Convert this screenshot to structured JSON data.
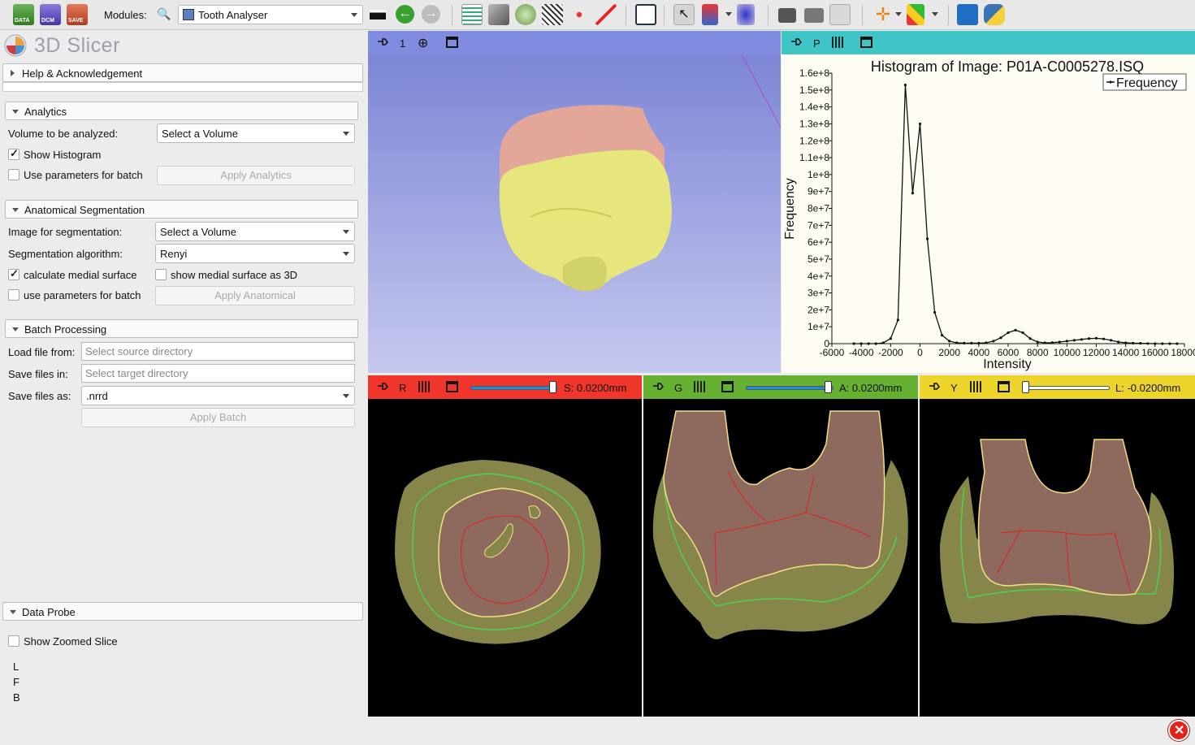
{
  "toolbar": {
    "data_label": "DATA",
    "dcm_label": "DCM",
    "save_label": "SAVE",
    "modules_label": "Modules:",
    "module_selected": "Tooth Analyser"
  },
  "app_title": "3D Slicer",
  "sections": {
    "help": "Help & Acknowledgement",
    "analytics": {
      "title": "Analytics",
      "volume_label": "Volume to be analyzed:",
      "volume_value": "Select a Volume",
      "show_histogram": "Show Histogram",
      "show_histogram_checked": true,
      "use_batch": "Use parameters for batch",
      "use_batch_checked": false,
      "apply": "Apply Analytics"
    },
    "anatomical": {
      "title": "Anatomical Segmentation",
      "image_label": "Image for segmentation:",
      "image_value": "Select a Volume",
      "algo_label": "Segmentation algorithm:",
      "algo_value": "Renyi",
      "medial": "calculate medial surface",
      "medial_checked": true,
      "medial3d": "show medial surface as 3D",
      "medial3d_checked": false,
      "use_batch": "use parameters for batch",
      "use_batch_checked": false,
      "apply": "Apply Anatomical"
    },
    "batch": {
      "title": "Batch Processing",
      "load_label": "Load file from:",
      "load_placeholder": "Select source directory",
      "save_label": "Save files in:",
      "save_placeholder": "Select target directory",
      "saveas_label": "Save files as:",
      "saveas_value": ".nrrd",
      "apply": "Apply Batch"
    },
    "probe": {
      "title": "Data Probe",
      "zoomed": "Show Zoomed Slice",
      "zoomed_checked": false,
      "l": "L",
      "f": "F",
      "b": "B"
    }
  },
  "views": {
    "threed": {
      "label": "1",
      "color": "#7f8ce0"
    },
    "plot": {
      "label": "P",
      "color": "#3fc5c5"
    },
    "red": {
      "label": "R",
      "offset": "S: 0.0200mm",
      "color": "#f0362a",
      "level": 0.98
    },
    "green": {
      "label": "G",
      "offset": "A: 0.0200mm",
      "color": "#66b032",
      "level": 0.98
    },
    "yellow": {
      "label": "Y",
      "offset": "L: -0.0200mm",
      "color": "#ecd42a",
      "level": 0.0
    }
  },
  "chart_data": {
    "type": "line",
    "title": "Histogram of Image: P01A-C0005278.ISQ",
    "xlabel": "Intensity",
    "ylabel": "Frequency",
    "xlim": [
      -6000,
      18000
    ],
    "ylim": [
      0,
      160000000
    ],
    "grid": false,
    "legend_position": "top-right",
    "x_ticks": [
      "-6000",
      "-4000",
      "-2000",
      "0",
      "2000",
      "4000",
      "6000",
      "8000",
      "10000",
      "12000",
      "14000",
      "16000",
      "18000"
    ],
    "y_ticks": [
      "0",
      "1e+7",
      "2e+7",
      "3e+7",
      "4e+7",
      "5e+7",
      "6e+7",
      "7e+7",
      "8e+7",
      "9e+7",
      "1e+8",
      "1.1e+8",
      "1.2e+8",
      "1.3e+8",
      "1.4e+8",
      "1.5e+8",
      "1.6e+8"
    ],
    "series": [
      {
        "name": "Frequency",
        "x": [
          -4500,
          -4000,
          -3500,
          -3000,
          -2500,
          -2000,
          -1500,
          -1000,
          -500,
          0,
          500,
          1000,
          1500,
          2000,
          2500,
          3000,
          3500,
          4000,
          4500,
          5000,
          5500,
          6000,
          6500,
          7000,
          7500,
          8000,
          8500,
          9000,
          9500,
          10000,
          10500,
          11000,
          11500,
          12000,
          12500,
          13000,
          13500,
          14000,
          14500,
          15000,
          15500,
          16000,
          16500,
          17000,
          17500
        ],
        "values": [
          0,
          0,
          0,
          0,
          500000,
          3000000,
          14000000,
          153000000,
          89000000,
          130000000,
          62000000,
          18500000,
          5000000,
          1500000,
          500000,
          300000,
          300000,
          300000,
          500000,
          1500000,
          3500000,
          6500000,
          8000000,
          6500000,
          3000000,
          1000000,
          500000,
          600000,
          1000000,
          1500000,
          2000000,
          2500000,
          3000000,
          3200000,
          2800000,
          2000000,
          1000000,
          500000,
          300000,
          200000,
          100000,
          0,
          0,
          0,
          0
        ]
      }
    ]
  }
}
